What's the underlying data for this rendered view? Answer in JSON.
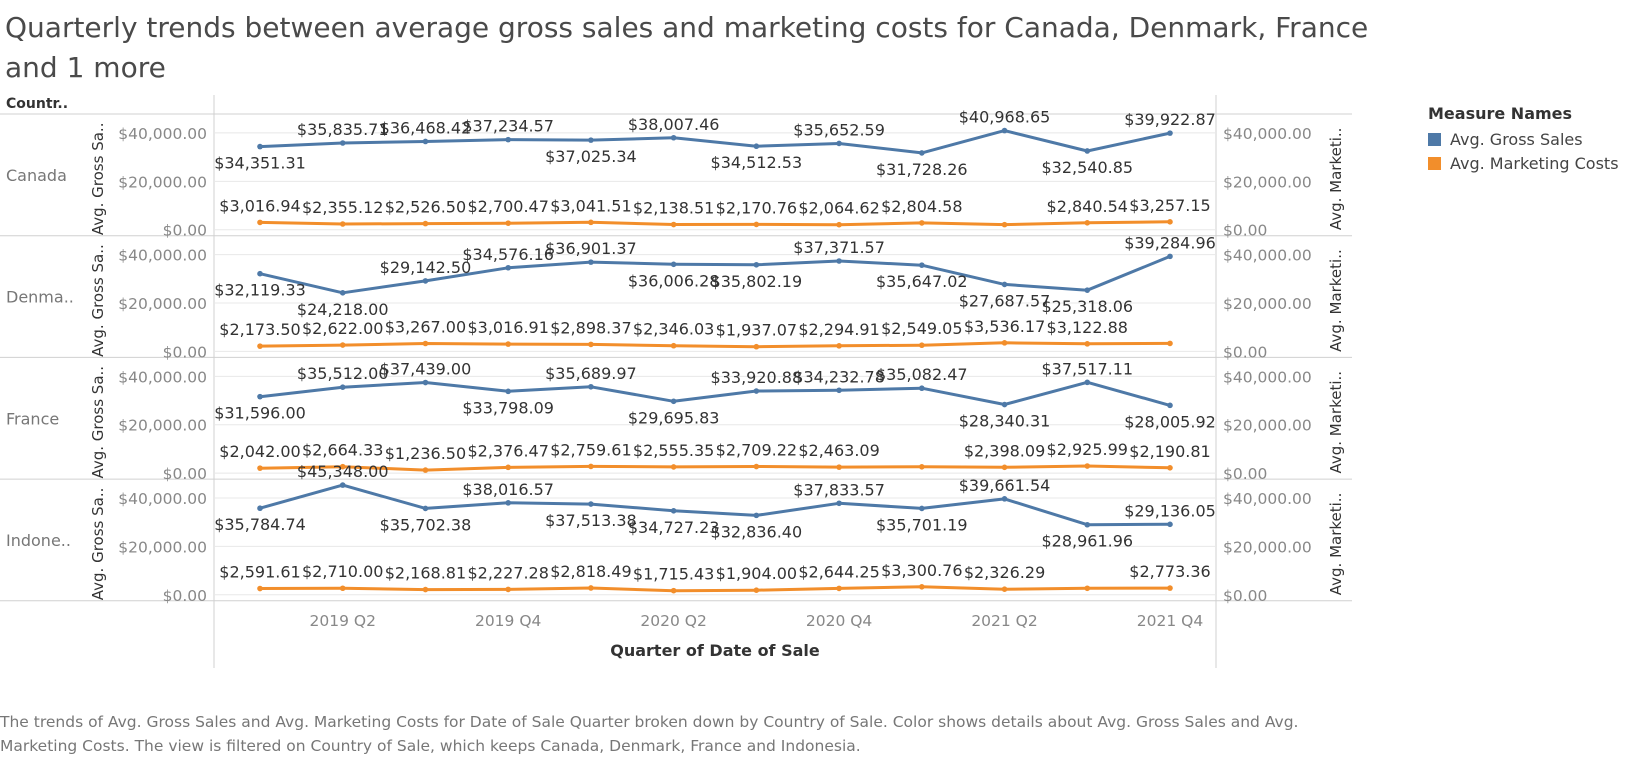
{
  "title": "Quarterly trends between average gross sales and marketing costs for Canada, Denmark, France and 1 more",
  "caption": "The trends of Avg. Gross Sales and Avg. Marketing Costs for Date of Sale Quarter broken down by Country of Sale.  Color shows details about Avg. Gross Sales and Avg. Marketing Costs. The view is filtered on Country of Sale, which keeps Canada, Denmark, France and Indonesia.",
  "colors": {
    "gross": "#4e79a7",
    "marketing": "#f28e2b",
    "grid": "#e8e8e8",
    "border": "#d0d0d0",
    "axis_text": "#888888",
    "label_text": "#333333"
  },
  "legend": {
    "title": "Measure Names",
    "items": [
      {
        "label": "Avg. Gross Sales",
        "color": "#4e79a7"
      },
      {
        "label": "Avg. Marketing Costs",
        "color": "#f28e2b"
      }
    ]
  },
  "chart_data": {
    "type": "line",
    "row_header": "Countr..",
    "xlabel": "Quarter of Date of Sale",
    "x_tick_labels": [
      "2019 Q2",
      "2019 Q4",
      "2020 Q2",
      "2020 Q4",
      "2021 Q2",
      "2021 Q4"
    ],
    "x_tick_indices": [
      1,
      3,
      5,
      7,
      9,
      11
    ],
    "quarters": [
      "2019 Q1",
      "2019 Q2",
      "2019 Q3",
      "2019 Q4",
      "2020 Q1",
      "2020 Q2",
      "2020 Q3",
      "2020 Q4",
      "2021 Q1",
      "2021 Q2",
      "2021 Q3",
      "2021 Q4"
    ],
    "y_left_label": "Avg. Gross Sa..",
    "y_right_label": "Avg. Marketi..",
    "y_tick_labels": [
      "$40,000.00",
      "$20,000.00",
      "$0.00"
    ],
    "y_ticks": [
      40000,
      20000,
      0
    ],
    "ylim": [
      0,
      45348
    ],
    "rows": [
      {
        "country": "Canada",
        "gross": [
          34351.31,
          35835.71,
          36468.42,
          37234.57,
          37025.34,
          38007.46,
          34512.53,
          35652.59,
          31728.26,
          40968.65,
          32540.85,
          39922.87
        ],
        "gross_labels": [
          "$34,351.31",
          "$35,835.71",
          "$36,468.42",
          "$37,234.57",
          "$37,025.34",
          "$38,007.46",
          "$34,512.53",
          "$35,652.59",
          "$31,728.26",
          "$40,968.65",
          "$32,540.85",
          "$39,922.87"
        ],
        "marketing": [
          3016.94,
          2355.12,
          2526.5,
          2700.47,
          3041.51,
          2138.51,
          2170.76,
          2064.62,
          2804.58,
          2100.0,
          2840.54,
          3257.15
        ],
        "marketing_labels": [
          "$3,016.94",
          "$2,355.12",
          "$2,526.50",
          "$2,700.47",
          "$3,041.51",
          "$2,138.51",
          "$2,170.76",
          "$2,064.62",
          "$2,804.58",
          "",
          "$2,840.54",
          "$3,257.15"
        ]
      },
      {
        "country": "Denma..",
        "gross": [
          32119.33,
          24218.0,
          29142.5,
          34576.16,
          36901.37,
          36006.28,
          35802.19,
          37371.57,
          35647.02,
          27687.57,
          25318.06,
          39284.96
        ],
        "gross_labels": [
          "$32,119.33",
          "$24,218.00",
          "$29,142.50",
          "$34,576.16",
          "$36,901.37",
          "$36,006.28",
          "$35,802.19",
          "$37,371.57",
          "$35,647.02",
          "$27,687.57",
          "$25,318.06",
          "$39,284.96"
        ],
        "marketing": [
          2173.5,
          2622.0,
          3267.0,
          3016.91,
          2898.37,
          2346.03,
          1937.07,
          2294.91,
          2549.05,
          3536.17,
          3122.88,
          3300.0
        ],
        "marketing_labels": [
          "$2,173.50",
          "$2,622.00",
          "$3,267.00",
          "$3,016.91",
          "$2,898.37",
          "$2,346.03",
          "$1,937.07",
          "$2,294.91",
          "$2,549.05",
          "$3,536.17",
          "$3,122.88",
          ""
        ]
      },
      {
        "country": "France",
        "gross": [
          31596.0,
          35512.0,
          37439.0,
          33798.09,
          35689.97,
          29695.83,
          33920.88,
          34232.78,
          35082.47,
          28340.31,
          37517.11,
          28005.92
        ],
        "gross_labels": [
          "$31,596.00",
          "$35,512.00",
          "$37,439.00",
          "$33,798.09",
          "$35,689.97",
          "$29,695.83",
          "$33,920.88",
          "$34,232.78",
          "$35,082.47",
          "$28,340.31",
          "$37,517.11",
          "$28,005.92"
        ],
        "marketing": [
          2042.0,
          2664.33,
          1236.5,
          2376.47,
          2759.61,
          2555.35,
          2709.22,
          2463.09,
          2600.0,
          2398.09,
          2925.99,
          2190.81
        ],
        "marketing_labels": [
          "$2,042.00",
          "$2,664.33",
          "$1,236.50",
          "$2,376.47",
          "$2,759.61",
          "$2,555.35",
          "$2,709.22",
          "$2,463.09",
          "",
          "$2,398.09",
          "$2,925.99",
          "$2,190.81"
        ]
      },
      {
        "country": "Indone..",
        "gross": [
          35784.74,
          45348.0,
          35702.38,
          38016.57,
          37513.38,
          34727.23,
          32836.4,
          37833.57,
          35701.19,
          39661.54,
          28961.96,
          29136.05
        ],
        "gross_labels": [
          "$35,784.74",
          "$45,348.00",
          "$35,702.38",
          "$38,016.57",
          "$37,513.38",
          "$34,727.23",
          "$32,836.40",
          "$37,833.57",
          "$35,701.19",
          "$39,661.54",
          "$28,961.96",
          "$29,136.05"
        ],
        "marketing": [
          2591.61,
          2710.0,
          2168.81,
          2227.28,
          2818.49,
          1715.43,
          1904.0,
          2644.25,
          3300.76,
          2326.29,
          2700.0,
          2773.36
        ],
        "marketing_labels": [
          "$2,591.61",
          "$2,710.00",
          "$2,168.81",
          "$2,227.28",
          "$2,818.49",
          "$1,715.43",
          "$1,904.00",
          "$2,644.25",
          "$3,300.76",
          "$2,326.29",
          "",
          "$2,773.36"
        ]
      }
    ]
  }
}
